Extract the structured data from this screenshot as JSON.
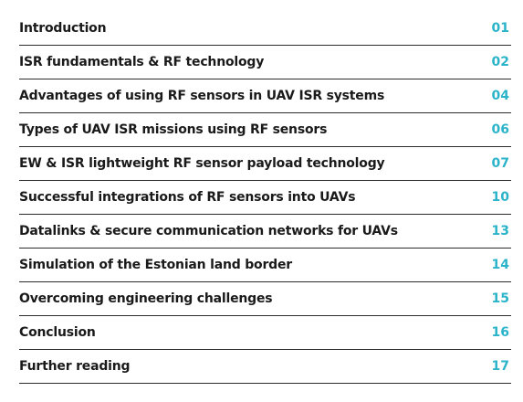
{
  "toc": {
    "accent_color": "#2ab3c9",
    "entries": [
      {
        "title": "Introduction",
        "page": "01"
      },
      {
        "title": "ISR fundamentals & RF technology",
        "page": "02"
      },
      {
        "title": "Advantages of using RF sensors in UAV ISR systems",
        "page": "04"
      },
      {
        "title": "Types of UAV ISR missions using RF sensors",
        "page": "06"
      },
      {
        "title": "EW & ISR lightweight RF sensor payload technology",
        "page": "07"
      },
      {
        "title": "Successful integrations of RF sensors into UAVs",
        "page": "10"
      },
      {
        "title": "Datalinks & secure communication networks for UAVs",
        "page": "13"
      },
      {
        "title": "Simulation of the Estonian land border",
        "page": "14"
      },
      {
        "title": "Overcoming engineering challenges",
        "page": "15"
      },
      {
        "title": "Conclusion",
        "page": "16"
      },
      {
        "title": "Further reading",
        "page": "17"
      }
    ]
  }
}
